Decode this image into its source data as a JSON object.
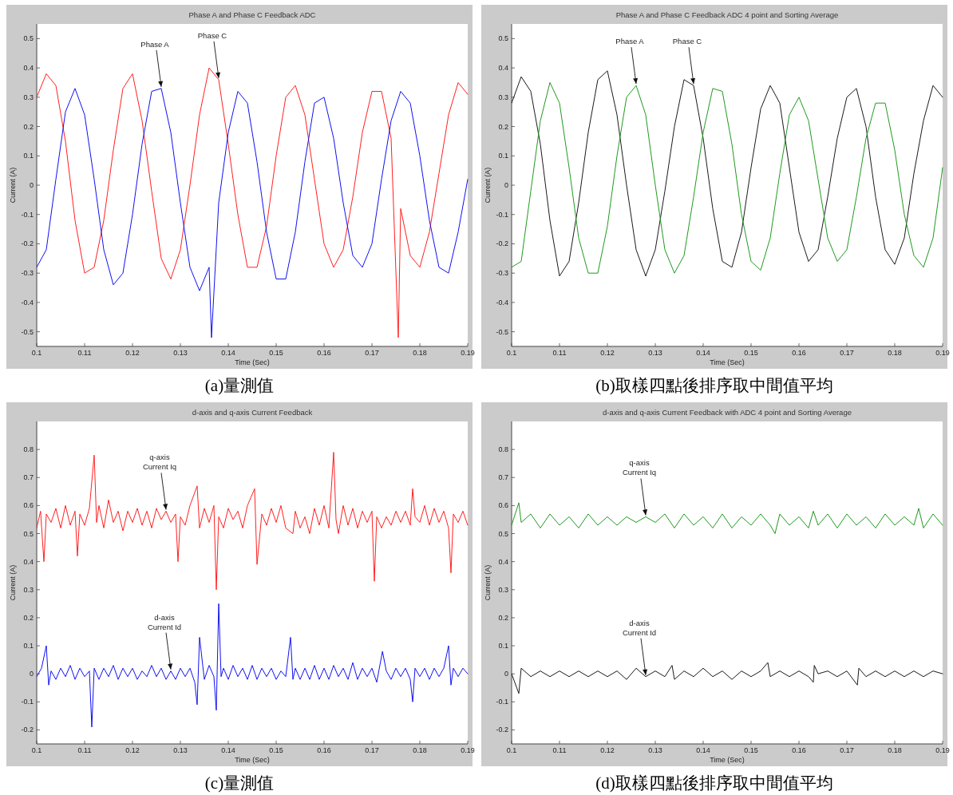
{
  "chart_data": [
    {
      "type": "line",
      "title": "Phase A and Phase C Feedback ADC",
      "xlabel": "Time (Sec)",
      "ylabel": "Current (A)",
      "xlim": [
        0.1,
        0.19
      ],
      "ylim": [
        -0.55,
        0.55
      ],
      "xticks": [
        0.1,
        0.11,
        0.12,
        0.13,
        0.14,
        0.15,
        0.16,
        0.17,
        0.18,
        0.19
      ],
      "yticks": [
        -0.5,
        -0.4,
        -0.3,
        -0.2,
        -0.1,
        0,
        0.1,
        0.2,
        0.3,
        0.4,
        0.5
      ],
      "series": [
        {
          "color": "#ff2020",
          "x": [
            0.1,
            0.102,
            0.104,
            0.106,
            0.108,
            0.11,
            0.112,
            0.114,
            0.116,
            0.118,
            0.12,
            0.122,
            0.124,
            0.126,
            0.128,
            0.13,
            0.132,
            0.134,
            0.136,
            0.138,
            0.14,
            0.142,
            0.144,
            0.146,
            0.148,
            0.15,
            0.152,
            0.154,
            0.156,
            0.158,
            0.16,
            0.162,
            0.164,
            0.166,
            0.168,
            0.17,
            0.172,
            0.174,
            0.1755,
            0.176,
            0.178,
            0.18,
            0.182,
            0.184,
            0.186,
            0.188,
            0.19
          ],
          "values": [
            0.3,
            0.38,
            0.34,
            0.15,
            -0.12,
            -0.3,
            -0.28,
            -0.12,
            0.12,
            0.33,
            0.38,
            0.22,
            -0.02,
            -0.25,
            -0.32,
            -0.22,
            0.0,
            0.24,
            0.4,
            0.36,
            0.14,
            -0.1,
            -0.28,
            -0.28,
            -0.14,
            0.1,
            0.3,
            0.34,
            0.24,
            0.02,
            -0.2,
            -0.28,
            -0.22,
            -0.04,
            0.18,
            0.32,
            0.32,
            0.16,
            -0.52,
            -0.08,
            -0.24,
            -0.28,
            -0.16,
            0.04,
            0.24,
            0.35,
            0.31
          ]
        },
        {
          "color": "#1010f0",
          "x": [
            0.1,
            0.102,
            0.104,
            0.106,
            0.108,
            0.11,
            0.112,
            0.114,
            0.116,
            0.118,
            0.12,
            0.122,
            0.124,
            0.126,
            0.128,
            0.13,
            0.132,
            0.134,
            0.136,
            0.1365,
            0.138,
            0.14,
            0.142,
            0.144,
            0.146,
            0.148,
            0.15,
            0.152,
            0.154,
            0.156,
            0.158,
            0.16,
            0.162,
            0.164,
            0.166,
            0.168,
            0.17,
            0.172,
            0.174,
            0.176,
            0.178,
            0.18,
            0.182,
            0.184,
            0.186,
            0.188,
            0.19
          ],
          "values": [
            -0.28,
            -0.22,
            0.02,
            0.25,
            0.33,
            0.24,
            0.02,
            -0.22,
            -0.34,
            -0.3,
            -0.1,
            0.14,
            0.32,
            0.33,
            0.18,
            -0.06,
            -0.28,
            -0.36,
            -0.28,
            -0.52,
            -0.06,
            0.18,
            0.32,
            0.28,
            0.08,
            -0.16,
            -0.32,
            -0.32,
            -0.16,
            0.08,
            0.28,
            0.3,
            0.16,
            -0.06,
            -0.24,
            -0.28,
            -0.2,
            0.02,
            0.22,
            0.32,
            0.28,
            0.1,
            -0.12,
            -0.28,
            -0.3,
            -0.16,
            0.02
          ]
        }
      ],
      "annotations": [
        {
          "text": "Phase A",
          "x": 0.126,
          "y": 0.33
        },
        {
          "text": "Phase C",
          "x": 0.138,
          "y": 0.36
        },
        "(a)量測值"
      ]
    },
    {
      "type": "line",
      "title": "Phase A and Phase C Feedback ADC 4 point and Sorting Average",
      "xlabel": "Time (Sec)",
      "ylabel": "Current (A)",
      "xlim": [
        0.1,
        0.19
      ],
      "ylim": [
        -0.55,
        0.55
      ],
      "xticks": [
        0.1,
        0.11,
        0.12,
        0.13,
        0.14,
        0.15,
        0.16,
        0.17,
        0.18,
        0.19
      ],
      "yticks": [
        -0.5,
        -0.4,
        -0.3,
        -0.2,
        -0.1,
        0,
        0.1,
        0.2,
        0.3,
        0.4,
        0.5
      ],
      "series": [
        {
          "color": "#1a1a1a",
          "x": [
            0.1,
            0.102,
            0.104,
            0.106,
            0.108,
            0.11,
            0.112,
            0.114,
            0.116,
            0.118,
            0.12,
            0.122,
            0.124,
            0.126,
            0.128,
            0.13,
            0.132,
            0.134,
            0.136,
            0.138,
            0.14,
            0.142,
            0.144,
            0.146,
            0.148,
            0.15,
            0.152,
            0.154,
            0.156,
            0.158,
            0.16,
            0.162,
            0.164,
            0.166,
            0.168,
            0.17,
            0.172,
            0.174,
            0.176,
            0.178,
            0.18,
            0.182,
            0.184,
            0.186,
            0.188,
            0.19
          ],
          "values": [
            0.28,
            0.37,
            0.32,
            0.14,
            -0.12,
            -0.31,
            -0.26,
            -0.06,
            0.18,
            0.36,
            0.39,
            0.24,
            0.0,
            -0.22,
            -0.31,
            -0.22,
            -0.02,
            0.2,
            0.36,
            0.34,
            0.16,
            -0.08,
            -0.26,
            -0.28,
            -0.16,
            0.06,
            0.26,
            0.34,
            0.28,
            0.06,
            -0.16,
            -0.26,
            -0.22,
            -0.04,
            0.16,
            0.3,
            0.33,
            0.2,
            -0.04,
            -0.22,
            -0.27,
            -0.18,
            0.04,
            0.22,
            0.34,
            0.3
          ]
        },
        {
          "color": "#1f9a1f",
          "x": [
            0.1,
            0.102,
            0.104,
            0.106,
            0.108,
            0.11,
            0.112,
            0.114,
            0.116,
            0.118,
            0.12,
            0.122,
            0.124,
            0.126,
            0.128,
            0.13,
            0.132,
            0.134,
            0.136,
            0.138,
            0.14,
            0.142,
            0.144,
            0.146,
            0.148,
            0.15,
            0.152,
            0.154,
            0.156,
            0.158,
            0.16,
            0.162,
            0.164,
            0.166,
            0.168,
            0.17,
            0.172,
            0.174,
            0.176,
            0.178,
            0.18,
            0.182,
            0.184,
            0.186,
            0.188,
            0.19
          ],
          "values": [
            -0.28,
            -0.26,
            -0.02,
            0.22,
            0.35,
            0.28,
            0.06,
            -0.18,
            -0.3,
            -0.3,
            -0.14,
            0.1,
            0.3,
            0.34,
            0.24,
            0.0,
            -0.22,
            -0.3,
            -0.24,
            -0.04,
            0.18,
            0.33,
            0.32,
            0.14,
            -0.1,
            -0.26,
            -0.29,
            -0.18,
            0.04,
            0.24,
            0.3,
            0.22,
            0.02,
            -0.18,
            -0.26,
            -0.22,
            -0.04,
            0.16,
            0.28,
            0.28,
            0.12,
            -0.1,
            -0.24,
            -0.28,
            -0.18,
            0.06
          ]
        }
      ],
      "annotations": [
        {
          "text": "Phase A",
          "x": 0.126,
          "y": 0.34
        },
        {
          "text": "Phase C",
          "x": 0.138,
          "y": 0.34
        },
        "(b)取樣四點後排序取中間值平均"
      ]
    },
    {
      "type": "line",
      "title": "d-axis and q-axis Current Feedback",
      "xlabel": "Time (Sec)",
      "ylabel": "Current (A)",
      "xlim": [
        0.1,
        0.19
      ],
      "ylim": [
        -0.25,
        0.9
      ],
      "xticks": [
        0.1,
        0.11,
        0.12,
        0.13,
        0.14,
        0.15,
        0.16,
        0.17,
        0.18,
        0.19
      ],
      "yticks": [
        -0.2,
        -0.1,
        0,
        0.1,
        0.2,
        0.3,
        0.4,
        0.5,
        0.6,
        0.7,
        0.8
      ],
      "series": [
        {
          "color": "#ff2020",
          "x": [
            0.1,
            0.1008,
            0.1015,
            0.102,
            0.103,
            0.104,
            0.105,
            0.106,
            0.107,
            0.108,
            0.1085,
            0.109,
            0.11,
            0.111,
            0.112,
            0.1125,
            0.113,
            0.114,
            0.115,
            0.116,
            0.117,
            0.118,
            0.119,
            0.12,
            0.121,
            0.122,
            0.123,
            0.124,
            0.125,
            0.126,
            0.127,
            0.128,
            0.129,
            0.1295,
            0.13,
            0.131,
            0.132,
            0.1335,
            0.134,
            0.135,
            0.136,
            0.137,
            0.1375,
            0.138,
            0.139,
            0.14,
            0.141,
            0.142,
            0.143,
            0.144,
            0.1455,
            0.146,
            0.147,
            0.148,
            0.149,
            0.15,
            0.151,
            0.152,
            0.1535,
            0.154,
            0.155,
            0.156,
            0.157,
            0.158,
            0.159,
            0.16,
            0.161,
            0.162,
            0.1625,
            0.163,
            0.164,
            0.165,
            0.166,
            0.167,
            0.168,
            0.169,
            0.17,
            0.1705,
            0.171,
            0.172,
            0.173,
            0.174,
            0.175,
            0.176,
            0.177,
            0.178,
            0.1785,
            0.179,
            0.18,
            0.181,
            0.182,
            0.183,
            0.184,
            0.185,
            0.186,
            0.1865,
            0.187,
            0.188,
            0.189,
            0.19
          ],
          "values": [
            0.52,
            0.58,
            0.4,
            0.57,
            0.54,
            0.59,
            0.52,
            0.6,
            0.53,
            0.58,
            0.42,
            0.57,
            0.53,
            0.59,
            0.78,
            0.54,
            0.6,
            0.52,
            0.62,
            0.54,
            0.58,
            0.51,
            0.58,
            0.54,
            0.59,
            0.53,
            0.58,
            0.52,
            0.59,
            0.55,
            0.58,
            0.54,
            0.57,
            0.4,
            0.56,
            0.53,
            0.6,
            0.67,
            0.52,
            0.59,
            0.54,
            0.6,
            0.3,
            0.56,
            0.52,
            0.59,
            0.55,
            0.58,
            0.52,
            0.6,
            0.66,
            0.39,
            0.57,
            0.53,
            0.59,
            0.54,
            0.6,
            0.52,
            0.5,
            0.58,
            0.52,
            0.56,
            0.5,
            0.59,
            0.53,
            0.6,
            0.52,
            0.79,
            0.55,
            0.5,
            0.6,
            0.53,
            0.59,
            0.52,
            0.58,
            0.54,
            0.58,
            0.33,
            0.56,
            0.52,
            0.56,
            0.53,
            0.58,
            0.54,
            0.58,
            0.53,
            0.66,
            0.56,
            0.54,
            0.6,
            0.53,
            0.59,
            0.54,
            0.58,
            0.52,
            0.36,
            0.57,
            0.54,
            0.58,
            0.53
          ]
        },
        {
          "color": "#1010f0",
          "x": [
            0.1,
            0.101,
            0.102,
            0.1025,
            0.103,
            0.104,
            0.105,
            0.106,
            0.107,
            0.108,
            0.109,
            0.11,
            0.111,
            0.1115,
            0.112,
            0.113,
            0.114,
            0.115,
            0.116,
            0.117,
            0.118,
            0.119,
            0.12,
            0.121,
            0.122,
            0.123,
            0.124,
            0.125,
            0.126,
            0.127,
            0.128,
            0.129,
            0.13,
            0.131,
            0.132,
            0.133,
            0.1335,
            0.134,
            0.135,
            0.136,
            0.137,
            0.1375,
            0.138,
            0.1385,
            0.139,
            0.14,
            0.141,
            0.142,
            0.143,
            0.144,
            0.145,
            0.146,
            0.147,
            0.148,
            0.149,
            0.15,
            0.151,
            0.152,
            0.153,
            0.1535,
            0.154,
            0.155,
            0.156,
            0.157,
            0.158,
            0.159,
            0.16,
            0.161,
            0.162,
            0.163,
            0.164,
            0.165,
            0.166,
            0.167,
            0.168,
            0.169,
            0.17,
            0.171,
            0.1722,
            0.173,
            0.174,
            0.175,
            0.176,
            0.177,
            0.178,
            0.1785,
            0.179,
            0.18,
            0.181,
            0.182,
            0.183,
            0.184,
            0.185,
            0.186,
            0.1865,
            0.187,
            0.188,
            0.189,
            0.19
          ],
          "values": [
            -0.01,
            0.02,
            0.1,
            -0.04,
            0.01,
            -0.02,
            0.02,
            -0.01,
            0.03,
            -0.02,
            0.02,
            -0.01,
            0.01,
            -0.19,
            0.02,
            -0.02,
            0.02,
            -0.01,
            0.03,
            -0.02,
            0.02,
            -0.01,
            0.02,
            -0.02,
            0.01,
            -0.01,
            0.03,
            -0.01,
            0.02,
            -0.02,
            0.01,
            -0.02,
            0.02,
            -0.01,
            0.02,
            -0.03,
            -0.11,
            0.13,
            -0.02,
            0.03,
            -0.01,
            -0.13,
            0.25,
            -0.01,
            0.02,
            -0.02,
            0.03,
            -0.01,
            0.02,
            -0.02,
            0.03,
            -0.02,
            0.02,
            -0.01,
            0.02,
            -0.02,
            0.01,
            -0.01,
            0.13,
            -0.02,
            0.02,
            -0.02,
            0.02,
            -0.02,
            0.03,
            -0.02,
            0.02,
            -0.02,
            0.03,
            -0.01,
            0.02,
            -0.02,
            0.04,
            -0.02,
            0.02,
            -0.01,
            0.02,
            -0.03,
            0.08,
            0.01,
            -0.02,
            0.02,
            -0.01,
            0.02,
            -0.02,
            -0.1,
            0.02,
            -0.01,
            0.02,
            -0.02,
            0.02,
            -0.01,
            0.02,
            0.1,
            -0.04,
            0.02,
            -0.01,
            0.02,
            0.0
          ]
        }
      ],
      "annotations": [
        {
          "text": "q-axis Current Iq",
          "x": 0.127,
          "y": 0.58
        },
        {
          "text": "d-axis Current Id",
          "x": 0.128,
          "y": 0.01
        },
        "(c)量測值"
      ]
    },
    {
      "type": "line",
      "title": "d-axis and q-axis Current Feedback with ADC 4 point and Sorting Average",
      "xlabel": "Time (Sec)",
      "ylabel": "Current (A)",
      "xlim": [
        0.1,
        0.19
      ],
      "ylim": [
        -0.25,
        0.9
      ],
      "xticks": [
        0.1,
        0.11,
        0.12,
        0.13,
        0.14,
        0.15,
        0.16,
        0.17,
        0.18,
        0.19
      ],
      "yticks": [
        -0.2,
        -0.1,
        0,
        0.1,
        0.2,
        0.3,
        0.4,
        0.5,
        0.6,
        0.7,
        0.8
      ],
      "series": [
        {
          "color": "#1f9a1f",
          "x": [
            0.1,
            0.1015,
            0.102,
            0.104,
            0.106,
            0.108,
            0.11,
            0.112,
            0.114,
            0.116,
            0.118,
            0.12,
            0.122,
            0.124,
            0.126,
            0.128,
            0.13,
            0.132,
            0.134,
            0.136,
            0.138,
            0.14,
            0.142,
            0.144,
            0.146,
            0.148,
            0.15,
            0.152,
            0.154,
            0.155,
            0.156,
            0.158,
            0.16,
            0.162,
            0.163,
            0.164,
            0.166,
            0.168,
            0.17,
            0.172,
            0.174,
            0.176,
            0.178,
            0.18,
            0.182,
            0.184,
            0.185,
            0.186,
            0.188,
            0.19
          ],
          "values": [
            0.53,
            0.61,
            0.54,
            0.57,
            0.52,
            0.57,
            0.53,
            0.56,
            0.52,
            0.57,
            0.53,
            0.56,
            0.53,
            0.56,
            0.54,
            0.56,
            0.54,
            0.57,
            0.52,
            0.57,
            0.53,
            0.56,
            0.52,
            0.57,
            0.52,
            0.56,
            0.53,
            0.57,
            0.53,
            0.5,
            0.57,
            0.53,
            0.56,
            0.52,
            0.58,
            0.53,
            0.57,
            0.52,
            0.57,
            0.53,
            0.56,
            0.52,
            0.57,
            0.53,
            0.56,
            0.53,
            0.59,
            0.52,
            0.57,
            0.53
          ]
        },
        {
          "color": "#1a1a1a",
          "x": [
            0.1,
            0.1015,
            0.102,
            0.104,
            0.106,
            0.108,
            0.11,
            0.112,
            0.114,
            0.116,
            0.118,
            0.12,
            0.122,
            0.124,
            0.126,
            0.128,
            0.13,
            0.132,
            0.1335,
            0.134,
            0.136,
            0.138,
            0.14,
            0.142,
            0.144,
            0.146,
            0.148,
            0.15,
            0.152,
            0.1535,
            0.154,
            0.156,
            0.158,
            0.16,
            0.162,
            0.163,
            0.1632,
            0.164,
            0.166,
            0.168,
            0.17,
            0.1722,
            0.1725,
            0.174,
            0.176,
            0.178,
            0.18,
            0.182,
            0.184,
            0.186,
            0.188,
            0.19
          ],
          "values": [
            0.0,
            -0.07,
            0.02,
            -0.01,
            0.01,
            -0.01,
            0.01,
            -0.01,
            0.01,
            -0.01,
            0.01,
            -0.01,
            0.01,
            -0.02,
            0.02,
            -0.01,
            0.01,
            -0.01,
            0.03,
            -0.02,
            0.01,
            -0.01,
            0.02,
            -0.01,
            0.01,
            -0.02,
            0.01,
            -0.01,
            0.01,
            0.04,
            -0.01,
            0.01,
            -0.01,
            0.01,
            -0.01,
            -0.03,
            0.03,
            0.0,
            0.01,
            -0.01,
            0.01,
            -0.04,
            0.02,
            -0.01,
            0.01,
            -0.01,
            0.01,
            -0.01,
            0.01,
            -0.01,
            0.01,
            0.0
          ]
        }
      ],
      "annotations": [
        {
          "text": "q-axis Current Iq",
          "x": 0.128,
          "y": 0.56
        },
        {
          "text": "d-axis Current Id",
          "x": 0.128,
          "y": -0.01
        },
        "(d)取樣四點後排序取中間值平均"
      ]
    }
  ]
}
